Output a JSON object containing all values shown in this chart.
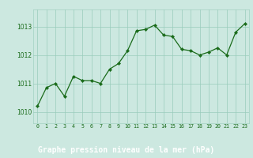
{
  "x": [
    0,
    1,
    2,
    3,
    4,
    5,
    6,
    7,
    8,
    9,
    10,
    11,
    12,
    13,
    14,
    15,
    16,
    17,
    18,
    19,
    20,
    21,
    22,
    23
  ],
  "y": [
    1010.2,
    1010.85,
    1011.0,
    1010.55,
    1011.25,
    1011.1,
    1011.1,
    1011.0,
    1011.5,
    1011.7,
    1012.15,
    1012.85,
    1012.9,
    1013.05,
    1012.7,
    1012.65,
    1012.2,
    1012.15,
    1012.0,
    1012.1,
    1012.25,
    1012.0,
    1012.8,
    1013.1
  ],
  "line_color": "#1a6b1a",
  "marker_color": "#1a6b1a",
  "bg_color": "#cce8e0",
  "plot_bg_color": "#cce8e0",
  "grid_color": "#99ccbb",
  "title": "Graphe pression niveau de la mer (hPa)",
  "yticks": [
    1010,
    1011,
    1012,
    1013
  ],
  "xlim": [
    -0.5,
    23.5
  ],
  "ylim": [
    1009.6,
    1013.6
  ],
  "title_color": "#1a6b1a",
  "tick_color": "#1a6b1a",
  "bottom_bar_color": "#2d7a2d",
  "bottom_label_color": "#ffffff"
}
